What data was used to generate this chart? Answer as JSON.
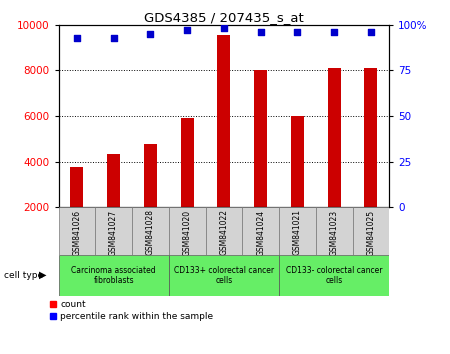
{
  "title": "GDS4385 / 207435_s_at",
  "samples": [
    "GSM841026",
    "GSM841027",
    "GSM841028",
    "GSM841020",
    "GSM841022",
    "GSM841024",
    "GSM841021",
    "GSM841023",
    "GSM841025"
  ],
  "counts": [
    3750,
    4350,
    4750,
    5900,
    9550,
    8000,
    6000,
    8100,
    8100
  ],
  "percentile_ranks": [
    93,
    93,
    95,
    97,
    98,
    96,
    96,
    96,
    96
  ],
  "groups": [
    {
      "label": "Carcinoma associated\nfibroblasts",
      "start": 0,
      "end": 3
    },
    {
      "label": "CD133+ colorectal cancer\ncells",
      "start": 3,
      "end": 6
    },
    {
      "label": "CD133- colorectal cancer\ncells",
      "start": 6,
      "end": 9
    }
  ],
  "bar_color": "#cc0000",
  "dot_color": "#0000cc",
  "ylim_left": [
    2000,
    10000
  ],
  "ylim_right": [
    0,
    100
  ],
  "yticks_left": [
    2000,
    4000,
    6000,
    8000,
    10000
  ],
  "yticks_right": [
    0,
    25,
    50,
    75,
    100
  ],
  "tick_label_area_color": "#d3d3d3",
  "group_color": "#66ee66",
  "cell_type_label": "cell type"
}
